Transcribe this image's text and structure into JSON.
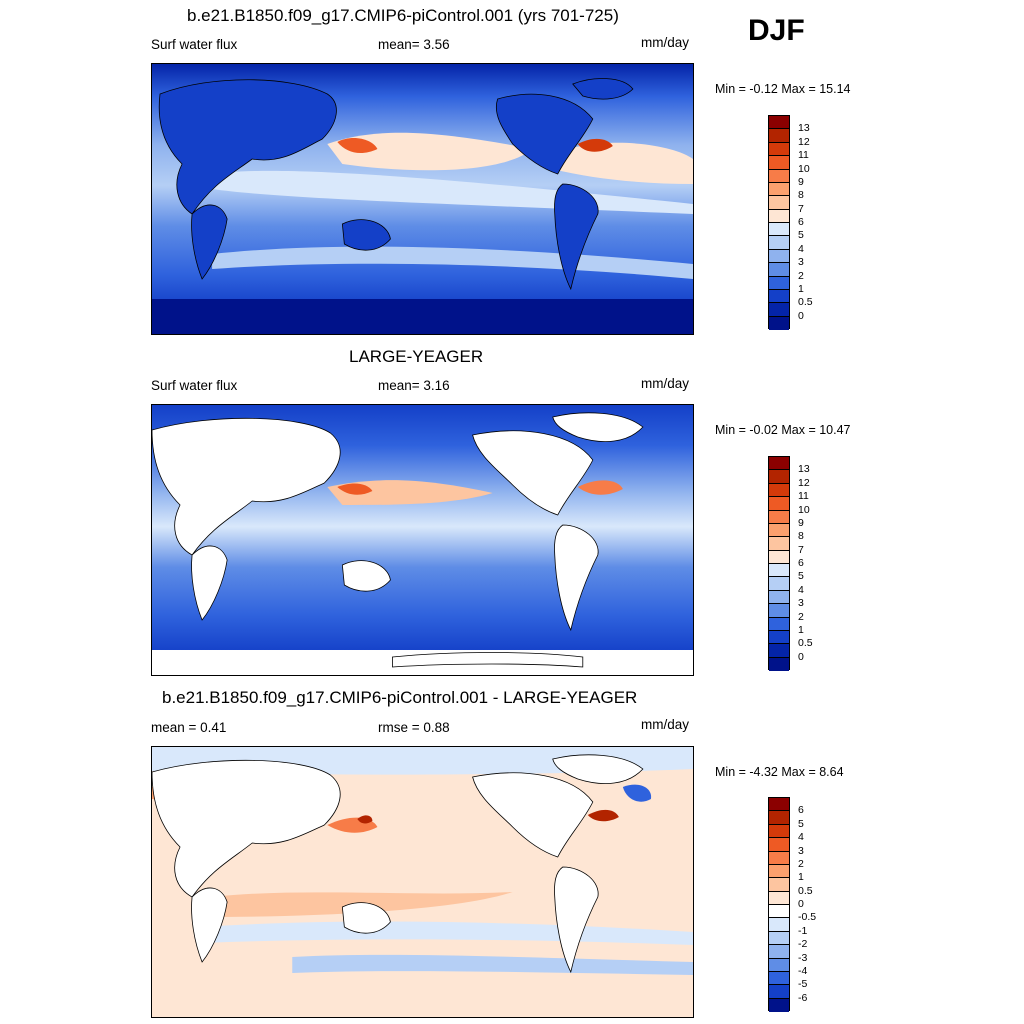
{
  "season": "DJF",
  "units": "mm/day",
  "panels": [
    {
      "title": "b.e21.B1850.f09_g17.CMIP6-piControl.001 (yrs 701-725)",
      "left_label": "Surf water flux",
      "mid_label": "mean=   3.56",
      "minmax": "Min =  -0.12 Max =  15.14",
      "colorbar": {
        "levels": [
          "13",
          "12",
          "11",
          "10",
          "9",
          "8",
          "7",
          "6",
          "5",
          "4",
          "3",
          "2",
          "1",
          "0.5",
          "0"
        ],
        "colors": [
          "#8b0000",
          "#b22400",
          "#d43a0a",
          "#ee5a24",
          "#f77c48",
          "#fba06e",
          "#fdc5a0",
          "#fee6d4",
          "#d9e8fb",
          "#b5cff5",
          "#8fb2ee",
          "#5f8de6",
          "#2f62dd",
          "#1440c8",
          "#0424a8",
          "#00128a"
        ]
      },
      "map_data": {
        "kind": "absolute",
        "ocean_land": "filled"
      }
    },
    {
      "title": "LARGE-YEAGER",
      "left_label": "Surf water flux",
      "mid_label": "mean=   3.16",
      "minmax": "Min =  -0.02 Max =  10.47",
      "colorbar": {
        "levels": [
          "13",
          "12",
          "11",
          "10",
          "9",
          "8",
          "7",
          "6",
          "5",
          "4",
          "3",
          "2",
          "1",
          "0.5",
          "0"
        ],
        "colors": [
          "#8b0000",
          "#b22400",
          "#d43a0a",
          "#ee5a24",
          "#f77c48",
          "#fba06e",
          "#fdc5a0",
          "#fee6d4",
          "#d9e8fb",
          "#b5cff5",
          "#8fb2ee",
          "#5f8de6",
          "#2f62dd",
          "#1440c8",
          "#0424a8",
          "#00128a"
        ]
      },
      "map_data": {
        "kind": "absolute",
        "ocean_land": "ocean-only"
      }
    },
    {
      "title": "b.e21.B1850.f09_g17.CMIP6-piControl.001 - LARGE-YEAGER",
      "left_label": "mean =   0.41",
      "mid_label": "rmse =   0.88",
      "minmax": "Min =  -4.32 Max =   8.64",
      "colorbar": {
        "levels": [
          "6",
          "5",
          "4",
          "3",
          "2",
          "1",
          "0.5",
          "0",
          "-0.5",
          "-1",
          "-2",
          "-3",
          "-4",
          "-5",
          "-6"
        ],
        "colors": [
          "#8b0000",
          "#b22400",
          "#d43a0a",
          "#ee5a24",
          "#f77c48",
          "#fba06e",
          "#fdc5a0",
          "#fee6d4",
          "#ffffff",
          "#d9e8fb",
          "#b5cff5",
          "#8fb2ee",
          "#5f8de6",
          "#2f62dd",
          "#1440c8",
          "#00128a"
        ]
      },
      "map_data": {
        "kind": "difference",
        "ocean_land": "ocean-only"
      }
    }
  ]
}
